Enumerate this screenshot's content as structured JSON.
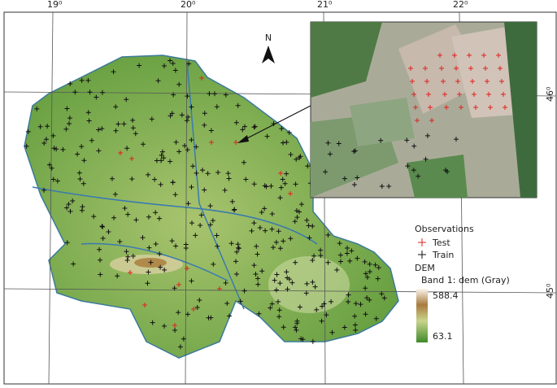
{
  "graticule": {
    "top": [
      "19⁰",
      "20⁰",
      "21⁰",
      "22⁰"
    ],
    "right": [
      "46⁰",
      "45⁰"
    ]
  },
  "north_arrow": "N",
  "legend": {
    "observations_title": "Observations",
    "items": [
      "Test",
      "Train"
    ],
    "dem_title": "DEM",
    "band": "Band 1: dem (Gray)",
    "max": 588.4,
    "min": 63.1
  }
}
